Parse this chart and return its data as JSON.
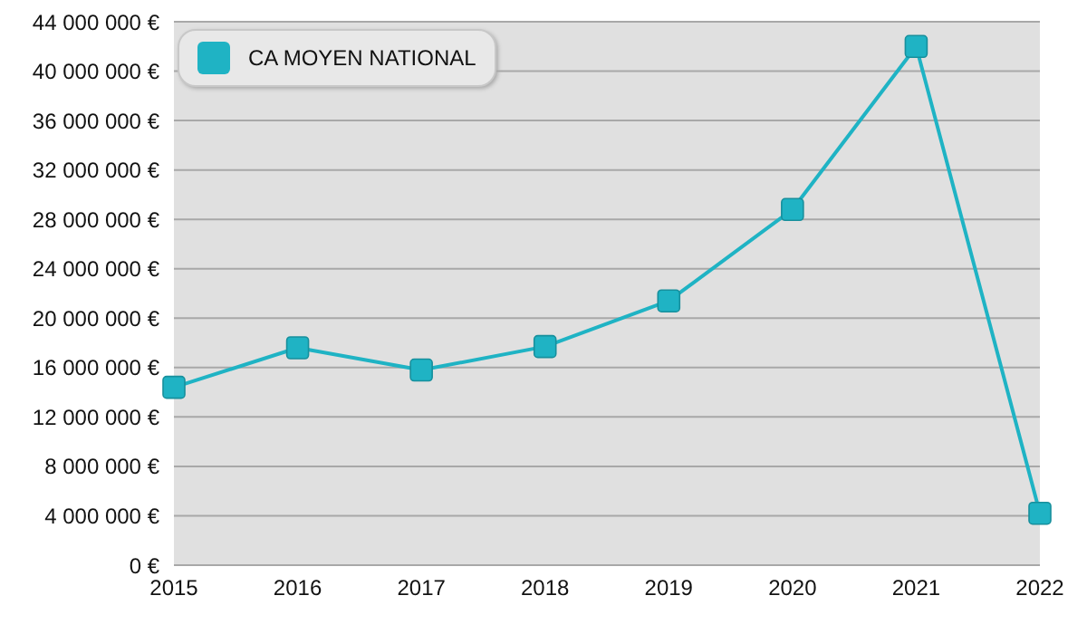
{
  "chart_data": {
    "type": "line",
    "categories": [
      "2015",
      "2016",
      "2017",
      "2018",
      "2019",
      "2020",
      "2021",
      "2022"
    ],
    "series": [
      {
        "name": "CA MOYEN NATIONAL",
        "color": "#1fb3c4",
        "values": [
          14400000,
          17600000,
          15800000,
          17700000,
          21400000,
          28800000,
          42000000,
          4200000
        ]
      }
    ],
    "ylim": [
      0,
      44000000
    ],
    "yticks": [
      {
        "value": 0,
        "label": "0 €"
      },
      {
        "value": 4000000,
        "label": "4 000 000 €"
      },
      {
        "value": 8000000,
        "label": "8 000 000 €"
      },
      {
        "value": 12000000,
        "label": "12 000 000 €"
      },
      {
        "value": 16000000,
        "label": "16 000 000 €"
      },
      {
        "value": 20000000,
        "label": "20 000 000 €"
      },
      {
        "value": 24000000,
        "label": "24 000 000 €"
      },
      {
        "value": 28000000,
        "label": "28 000 000 €"
      },
      {
        "value": 32000000,
        "label": "32 000 000 €"
      },
      {
        "value": 36000000,
        "label": "36 000 000 €"
      },
      {
        "value": 40000000,
        "label": "40 000 000 €"
      },
      {
        "value": 44000000,
        "label": "44 000 000 €"
      }
    ],
    "grid": "y",
    "legend": "top left",
    "marker": "square",
    "line_style": "solid"
  }
}
